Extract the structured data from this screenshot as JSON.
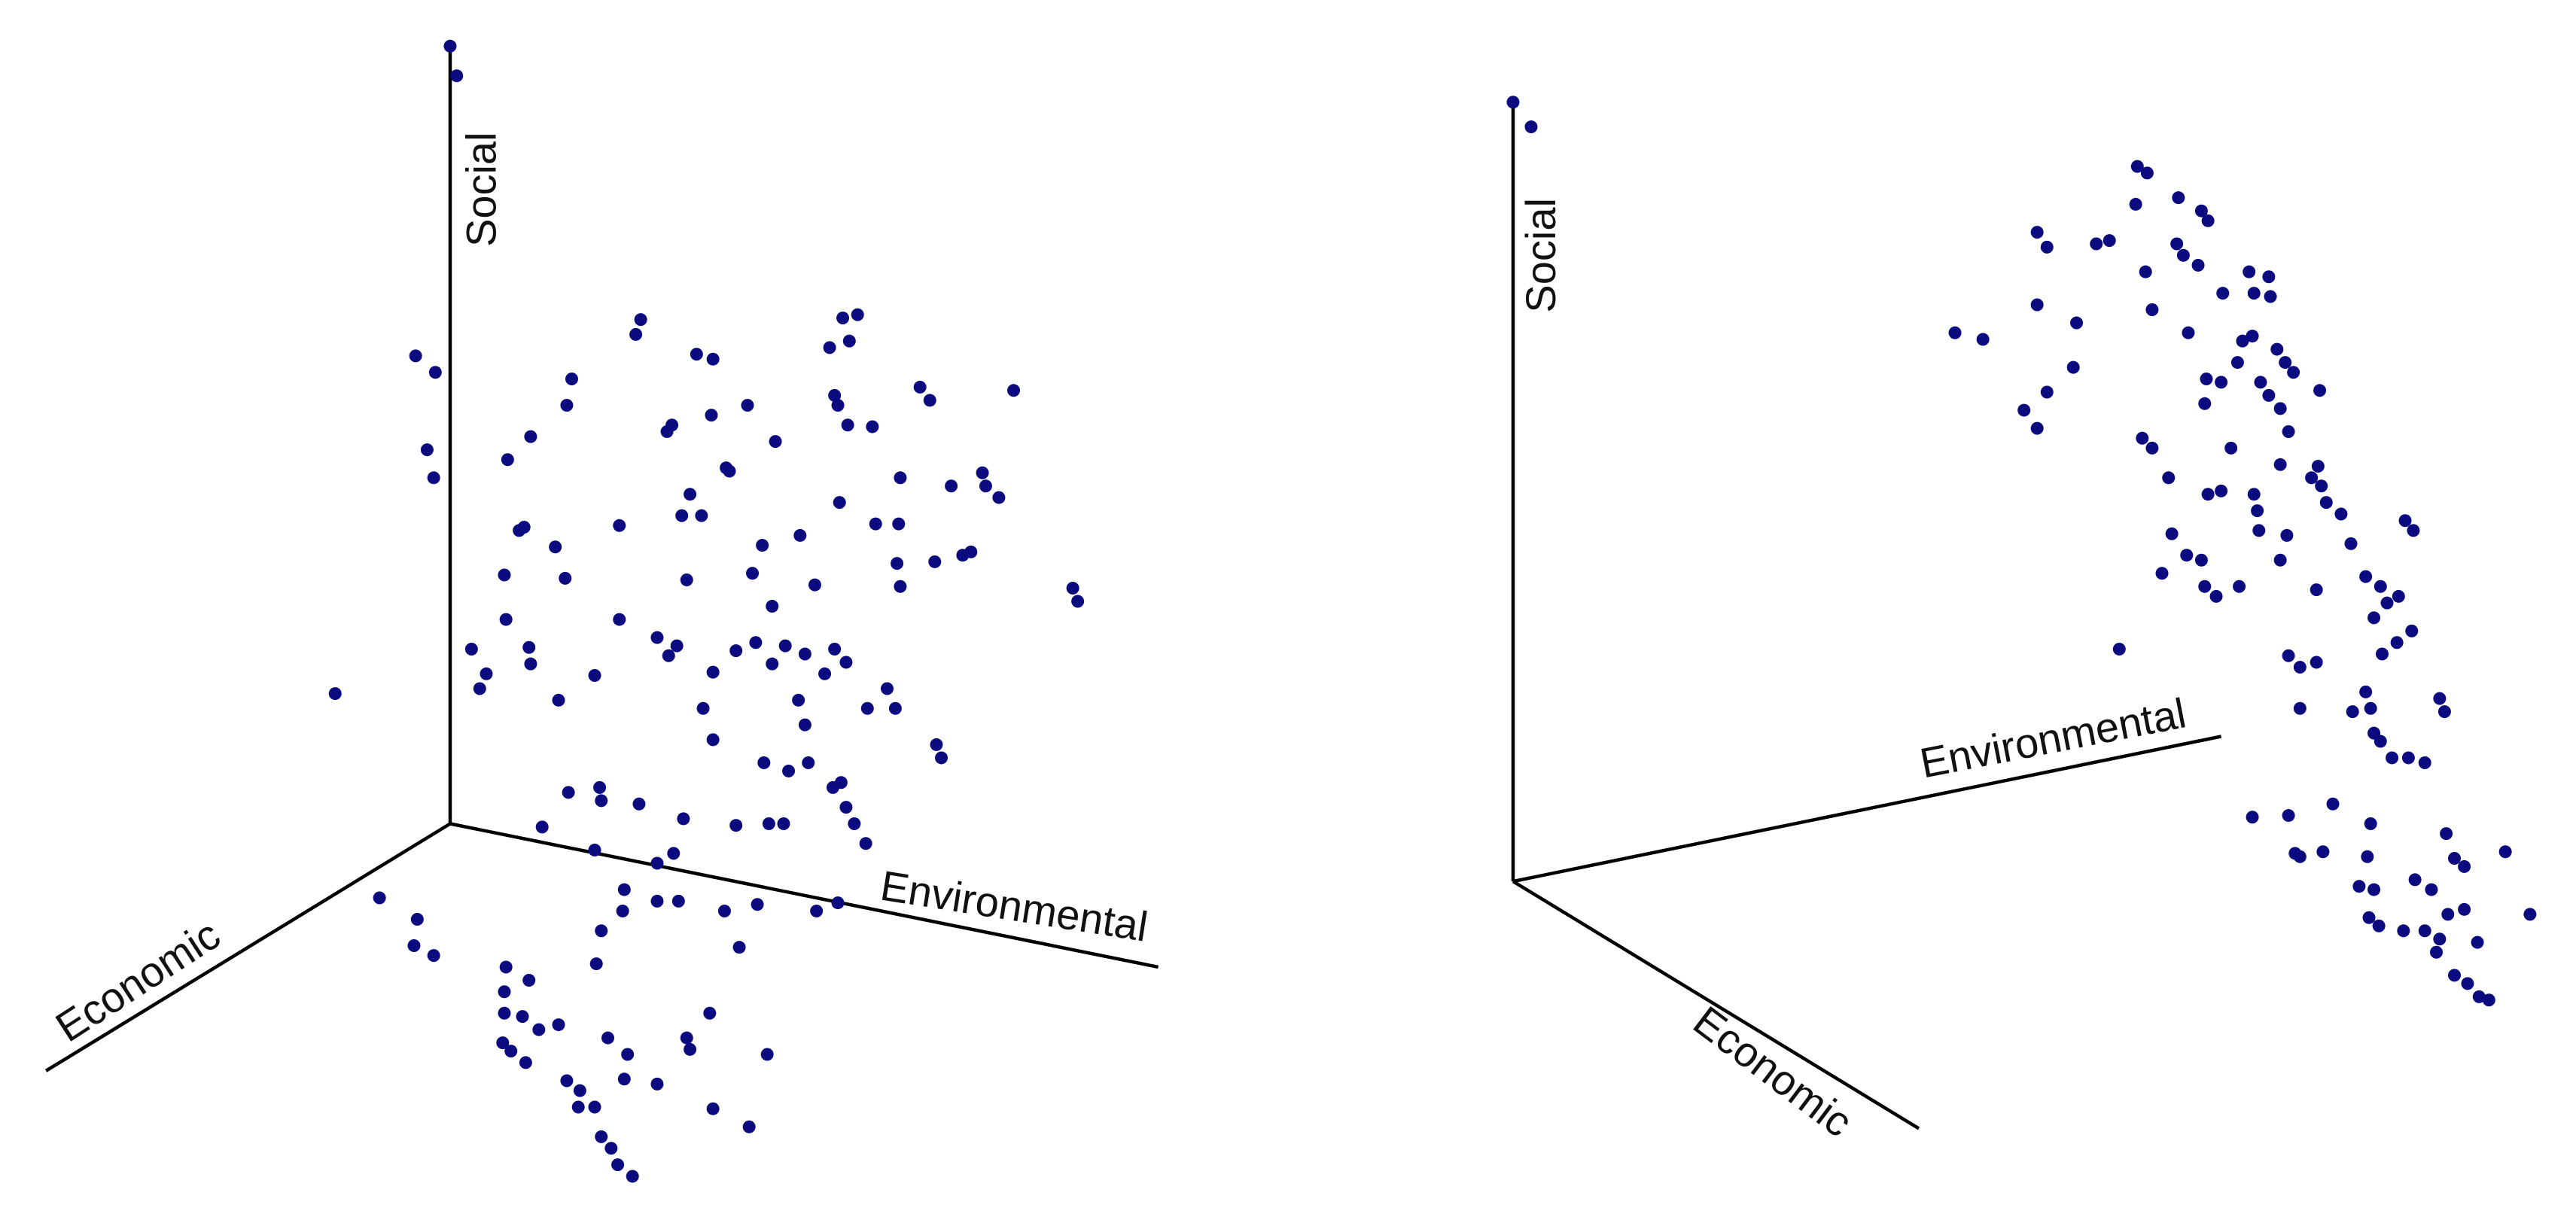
{
  "chart_data": [
    {
      "type": "scatter",
      "color": "#0b0b7f",
      "axis_labels": [
        "Social",
        "Economic",
        "Environmental"
      ],
      "xlim": [
        0,
        784
      ],
      "ylim": [
        746,
        0
      ],
      "x": [
        274,
        278,
        253,
        265,
        260,
        264,
        204,
        390,
        387,
        424,
        434,
        513,
        522,
        505,
        517,
        348,
        345,
        455,
        433,
        409,
        406,
        508,
        510,
        516,
        531,
        560,
        566,
        617,
        323,
        309,
        472,
        442,
        444,
        548,
        579,
        598,
        600,
        608,
        511,
        533,
        547,
        420,
        415,
        427,
        377,
        319,
        316,
        338,
        464,
        487,
        591,
        586,
        569,
        546,
        548,
        458,
        418,
        496,
        307,
        344,
        653,
        656,
        470,
        377,
        308,
        287,
        296,
        292,
        322,
        323,
        400,
        407,
        412,
        448,
        460,
        478,
        470,
        490,
        508,
        515,
        502,
        434,
        428,
        362,
        340,
        540,
        545,
        528,
        486,
        490,
        434,
        465,
        480,
        492,
        570,
        573,
        512,
        507,
        515,
        520,
        527,
        346,
        365,
        366,
        389,
        416,
        448,
        468,
        477,
        330,
        362,
        400,
        410,
        510,
        497,
        461,
        380,
        400,
        413,
        379,
        441,
        231,
        254,
        252,
        264,
        366,
        363,
        450,
        308,
        322,
        307,
        307,
        340,
        318,
        328,
        370,
        432,
        418,
        420,
        382,
        306,
        311,
        320,
        467,
        380,
        400,
        345,
        353,
        352,
        362,
        434,
        456,
        366,
        372,
        376,
        385
      ],
      "values": [
        28,
        46,
        216,
        226,
        273,
        290,
        421,
        194,
        203,
        215,
        218,
        193,
        191,
        211,
        207,
        230,
        246,
        246,
        252,
        258,
        262,
        240,
        246,
        258,
        259,
        235,
        243,
        237,
        265,
        279,
        268,
        284,
        286,
        290,
        295,
        287,
        295,
        302,
        305,
        318,
        318,
        300,
        313,
        313,
        319,
        320,
        322,
        332,
        331,
        325,
        335,
        337,
        341,
        342,
        356,
        348,
        352,
        355,
        349,
        351,
        357,
        365,
        368,
        376,
        376,
        394,
        409,
        418,
        393,
        403,
        387,
        398,
        392,
        395,
        390,
        392,
        403,
        397,
        394,
        402,
        409,
        408,
        430,
        410,
        425,
        418,
        430,
        430,
        425,
        440,
        449,
        463,
        468,
        463,
        452,
        460,
        475,
        478,
        490,
        500,
        512,
        481,
        478,
        486,
        488,
        497,
        501,
        500,
        500,
        502,
        516,
        524,
        518,
        548,
        553,
        549,
        540,
        547,
        547,
        553,
        553,
        545,
        558,
        574,
        580,
        565,
        585,
        575,
        587,
        595,
        602,
        615,
        622,
        617,
        625,
        630,
        615,
        630,
        637,
        640,
        633,
        638,
        645,
        640,
        655,
        658,
        656,
        662,
        672,
        672,
        673,
        684,
        690,
        697,
        707,
        714
      ]
    },
    {
      "type": "scatter",
      "color": "#0b0b7f",
      "axis_labels": [
        "Social",
        "Economic",
        "Environmental"
      ],
      "xlim": [
        0,
        784
      ],
      "ylim": [
        746,
        0
      ],
      "x": [
        137,
        148,
        517,
        523,
        542,
        556,
        560,
        516,
        456,
        462,
        492,
        500,
        541,
        545,
        554,
        522,
        585,
        597,
        569,
        588,
        598,
        456,
        526,
        406,
        423,
        480,
        548,
        581,
        587,
        602,
        607,
        578,
        559,
        568,
        592,
        612,
        597,
        604,
        628,
        478,
        462,
        448,
        456,
        558,
        520,
        526,
        609,
        574,
        604,
        627,
        623,
        629,
        536,
        560,
        568,
        588,
        590,
        632,
        641,
        591,
        608,
        538,
        547,
        532,
        556,
        558,
        565,
        579,
        604,
        647,
        656,
        680,
        685,
        665,
        676,
        669,
        626,
        661,
        684,
        675,
        666,
        506,
        609,
        616,
        626,
        656,
        648,
        659,
        616,
        701,
        704,
        661,
        665,
        682,
        692,
        672,
        636,
        587,
        609,
        659,
        613,
        616,
        630,
        657,
        705,
        710,
        716,
        741,
        652,
        661,
        686,
        696,
        706,
        716,
        756,
        658,
        664,
        679,
        692,
        701,
        724,
        699,
        710,
        718,
        725,
        731
      ],
      "values": [
        62,
        77,
        101,
        105,
        120,
        128,
        134,
        124,
        141,
        150,
        148,
        146,
        148,
        155,
        161,
        165,
        165,
        168,
        178,
        178,
        180,
        185,
        188,
        202,
        206,
        196,
        202,
        207,
        204,
        212,
        220,
        220,
        230,
        232,
        232,
        226,
        240,
        248,
        237,
        223,
        238,
        249,
        260,
        245,
        266,
        272,
        262,
        272,
        282,
        283,
        290,
        295,
        290,
        300,
        298,
        300,
        310,
        305,
        312,
        322,
        325,
        324,
        337,
        348,
        340,
        356,
        362,
        356,
        340,
        330,
        350,
        316,
        322,
        356,
        362,
        366,
        358,
        375,
        383,
        390,
        397,
        394,
        398,
        405,
        402,
        420,
        432,
        430,
        430,
        424,
        432,
        445,
        450,
        460,
        463,
        460,
        488,
        496,
        495,
        500,
        518,
        520,
        517,
        520,
        506,
        521,
        526,
        517,
        538,
        540,
        534,
        540,
        555,
        552,
        555,
        557,
        562,
        565,
        565,
        570,
        572,
        578,
        592,
        597,
        605,
        607
      ]
    }
  ]
}
